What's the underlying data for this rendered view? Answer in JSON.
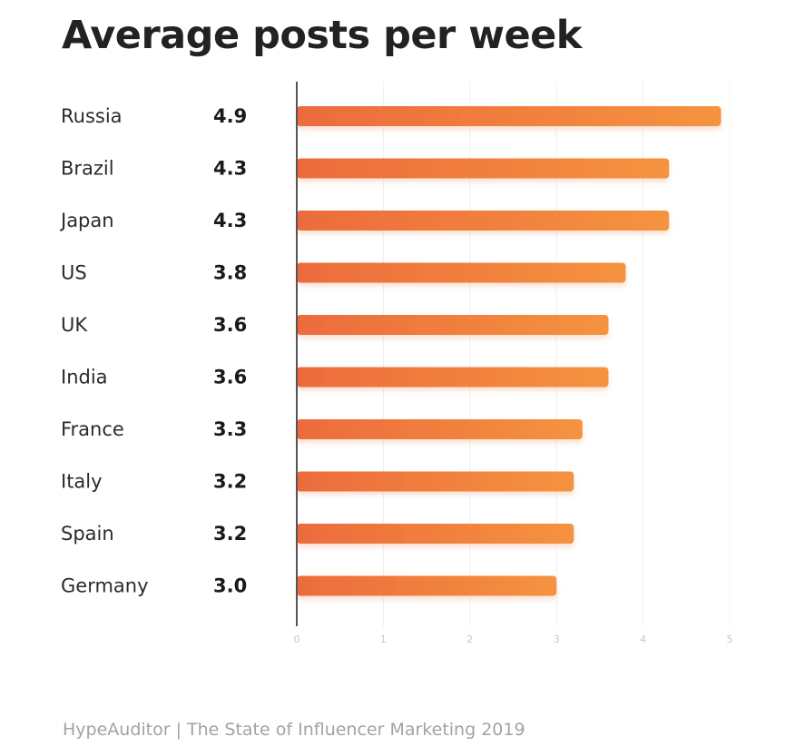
{
  "chart_data": {
    "type": "bar",
    "orientation": "horizontal",
    "title": "Average posts per week",
    "categories": [
      "Russia",
      "Brazil",
      "Japan",
      "US",
      "UK",
      "India",
      "France",
      "Italy",
      "Spain",
      "Germany"
    ],
    "values": [
      4.9,
      4.3,
      4.3,
      3.8,
      3.6,
      3.6,
      3.3,
      3.2,
      3.2,
      3.0
    ],
    "value_labels": [
      "4.9",
      "4.3",
      "4.3",
      "3.8",
      "3.6",
      "3.6",
      "3.3",
      "3.2",
      "3.2",
      "3.0"
    ],
    "xlim": [
      0,
      5
    ],
    "x_ticks": [
      0,
      1,
      2,
      3,
      4,
      5
    ],
    "x_tick_labels": [
      "0",
      "1",
      "2",
      "3",
      "4",
      "5"
    ],
    "xlabel": "",
    "ylabel": "",
    "grid": true,
    "legend": "none"
  },
  "colors": {
    "bar_start": "#ec6b3d",
    "bar_end": "#f5933f",
    "axis": "#555555",
    "grid": "#efefef",
    "category_text": "#2b2b2b",
    "value_text": "#1a1a1a",
    "tick_text": "#c8c8c8"
  },
  "source": "HypeAuditor | The State of Influencer Marketing 2019"
}
